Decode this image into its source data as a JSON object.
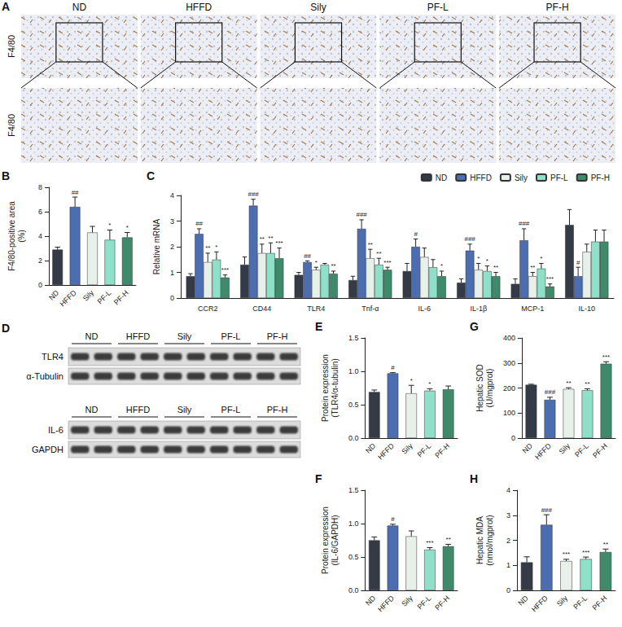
{
  "panel_A": {
    "letter": "A",
    "stain": "F4/80",
    "groups": [
      "ND",
      "HFFD",
      "Sily",
      "PF-L",
      "PF-H"
    ]
  },
  "panel_D": {
    "letter": "D",
    "groups": [
      "ND",
      "HFFD",
      "Sily",
      "PF-L",
      "PF-H"
    ],
    "blots": [
      {
        "target": "TLR4",
        "loading": "α-Tubulin"
      },
      {
        "target": "IL-6",
        "loading": "GAPDH"
      }
    ]
  },
  "chart_data": [
    {
      "panel": "B",
      "type": "bar",
      "y_label": "F4/80-positive area (%)",
      "categories": [
        "ND",
        "HFFD",
        "Sily",
        "PF-L",
        "PF-H"
      ],
      "values": [
        2.9,
        6.4,
        4.3,
        3.7,
        3.9
      ],
      "errors": [
        0.2,
        0.8,
        0.5,
        0.8,
        0.4
      ],
      "annotations": [
        null,
        "##",
        null,
        "*",
        "*"
      ],
      "colors": [
        "#343a46",
        "#4c6db0",
        "#e8f0ea",
        "#8fe0c8",
        "#3e8a6a"
      ],
      "ylim": [
        0,
        8
      ],
      "yticks": [
        0,
        2,
        4,
        6,
        8
      ],
      "grid": false
    },
    {
      "panel": "C",
      "type": "bar",
      "y_label": "Relative mRNA",
      "categories": [
        "CCR2",
        "CD44",
        "TLR4",
        "Tnf-α",
        "IL-6",
        "IL-1β",
        "MCP-1",
        "IL-10"
      ],
      "series": [
        {
          "name": "ND",
          "color": "#343a46",
          "values": [
            0.85,
            1.3,
            0.9,
            0.7,
            1.05,
            0.6,
            0.55,
            2.85
          ],
          "errors": [
            0.1,
            0.3,
            0.1,
            0.15,
            0.3,
            0.15,
            0.2,
            0.6
          ]
        },
        {
          "name": "HFFD",
          "color": "#4c6db0",
          "values": [
            2.5,
            3.6,
            1.4,
            2.7,
            2.0,
            1.85,
            2.25,
            0.85
          ],
          "errors": [
            0.2,
            0.25,
            0.05,
            0.35,
            0.3,
            0.25,
            0.45,
            0.35
          ],
          "annotations": [
            "##",
            "###",
            "##",
            "###",
            "#",
            "###",
            "###",
            "#"
          ]
        },
        {
          "name": "Sily",
          "color": "#e8f0ea",
          "values": [
            1.4,
            1.75,
            1.1,
            1.55,
            1.6,
            1.1,
            0.85,
            1.8
          ],
          "errors": [
            0.35,
            0.35,
            0.1,
            0.35,
            0.35,
            0.25,
            0.15,
            0.3
          ],
          "annotations": [
            "**",
            "**",
            "*",
            "**",
            null,
            "*",
            "**",
            null
          ]
        },
        {
          "name": "PF-L",
          "color": "#8fe0c8",
          "values": [
            1.5,
            1.75,
            1.3,
            1.3,
            1.2,
            1.05,
            1.15,
            2.2
          ],
          "errors": [
            0.3,
            0.4,
            0.05,
            0.25,
            0.3,
            0.2,
            0.2,
            0.45
          ],
          "annotations": [
            "*",
            "**",
            null,
            "**",
            null,
            "*",
            "*",
            null
          ]
        },
        {
          "name": "PF-H",
          "color": "#3e8a6a",
          "values": [
            0.8,
            1.55,
            0.95,
            1.1,
            0.85,
            0.85,
            0.45,
            2.2
          ],
          "errors": [
            0.1,
            0.4,
            0.1,
            0.1,
            0.2,
            0.15,
            0.1,
            0.45
          ],
          "annotations": [
            "***",
            "***",
            "**",
            "***",
            "*",
            "**",
            "***",
            null
          ]
        }
      ],
      "ylim": [
        0,
        4
      ],
      "yticks": [
        0,
        1,
        2,
        3,
        4
      ],
      "grid": false,
      "legend": "top"
    },
    {
      "panel": "E",
      "type": "bar",
      "y_label": "Protein expression (TLR4/α-tubulin)",
      "categories": [
        "ND",
        "HFFD",
        "Sily",
        "PF-L",
        "PF-H"
      ],
      "values": [
        0.69,
        0.97,
        0.67,
        0.71,
        0.73
      ],
      "errors": [
        0.03,
        0.01,
        0.12,
        0.03,
        0.05
      ],
      "annotations": [
        null,
        "#",
        "*",
        "*",
        null
      ],
      "colors": [
        "#343a46",
        "#4c6db0",
        "#e8f0ea",
        "#8fe0c8",
        "#3e8a6a"
      ],
      "ylim": [
        0,
        1.5
      ],
      "yticks": [
        {
          "value": 0,
          "label": "0.0"
        },
        0.5,
        {
          "value": 1,
          "label": "1.0"
        },
        1.5
      ],
      "grid": false
    },
    {
      "panel": "F",
      "type": "bar",
      "y_label": "Protein expression (IL-6/GAPDH)",
      "categories": [
        "ND",
        "HFFD",
        "Sily",
        "PF-L",
        "PF-H"
      ],
      "values": [
        0.75,
        0.97,
        0.81,
        0.61,
        0.66
      ],
      "errors": [
        0.05,
        0.02,
        0.08,
        0.03,
        0.03
      ],
      "annotations": [
        null,
        "#",
        null,
        "***",
        "**"
      ],
      "colors": [
        "#343a46",
        "#4c6db0",
        "#e8f0ea",
        "#8fe0c8",
        "#3e8a6a"
      ],
      "ylim": [
        0,
        1.5
      ],
      "yticks": [
        {
          "value": 0,
          "label": "0.0"
        },
        0.5,
        {
          "value": 1,
          "label": "1.0"
        },
        1.5
      ],
      "grid": false
    },
    {
      "panel": "G",
      "type": "bar",
      "y_label": "Hepatic SOD (U/mgprot)",
      "categories": [
        "ND",
        "HFFD",
        "Sily",
        "PF-L",
        "PF-H"
      ],
      "values": [
        213,
        153,
        196,
        191,
        297
      ],
      "errors": [
        2,
        10,
        5,
        6,
        8
      ],
      "annotations": [
        null,
        "###",
        "**",
        "**",
        "***"
      ],
      "colors": [
        "#343a46",
        "#4c6db0",
        "#e8f0ea",
        "#8fe0c8",
        "#3e8a6a"
      ],
      "ylim": [
        0,
        400
      ],
      "yticks": [
        0,
        100,
        200,
        300,
        400
      ],
      "grid": false
    },
    {
      "panel": "H",
      "type": "bar",
      "y_label": "Hepatic MDA (nmol/mgprot)",
      "categories": [
        "ND",
        "HFFD",
        "Sily",
        "PF-L",
        "PF-H"
      ],
      "values": [
        1.12,
        2.62,
        1.17,
        1.25,
        1.53
      ],
      "errors": [
        0.22,
        0.4,
        0.07,
        0.08,
        0.12
      ],
      "annotations": [
        null,
        "###",
        "***",
        "***",
        "**"
      ],
      "colors": [
        "#343a46",
        "#4c6db0",
        "#e8f0ea",
        "#8fe0c8",
        "#3e8a6a"
      ],
      "ylim": [
        0,
        4
      ],
      "yticks": [
        0,
        1,
        2,
        3,
        4
      ],
      "grid": false
    }
  ]
}
